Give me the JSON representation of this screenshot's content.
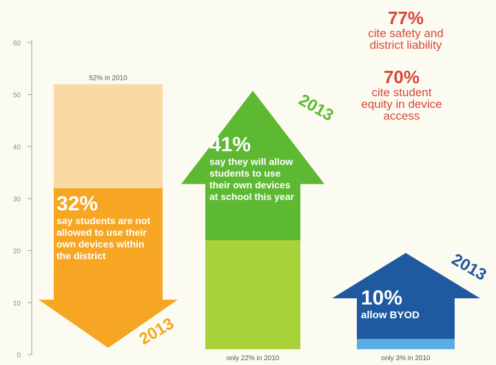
{
  "chart_data": {
    "type": "bar",
    "ylim": [
      0,
      60
    ],
    "yticks": [
      "60",
      "50",
      "40",
      "30",
      "20",
      "10",
      "0"
    ],
    "grid": false,
    "bars": [
      {
        "name": "not-allowed",
        "value_2013": 32,
        "value_2010": 52,
        "direction": "down",
        "label_2010": "52% in 2010",
        "year_label": "2013",
        "percent": "32%",
        "text": "say students are not allowed to use their own devices within the district",
        "color_2013": "#f6a623",
        "color_2010": "#fbd9a5"
      },
      {
        "name": "will-allow",
        "value_2013": 41,
        "value_2010": 22,
        "direction": "up",
        "label_2010": "only 22% in 2010",
        "year_label": "2013",
        "percent": "41%",
        "text": "say they will allow students to use their own devices at school this year",
        "color_2013": "#5db832",
        "color_2010": "#a8d23a"
      },
      {
        "name": "allow-byod",
        "value_2013": 10,
        "value_2010": 3,
        "direction": "up",
        "label_2010": "only 3% in 2010",
        "year_label": "2013",
        "percent": "10%",
        "text": "allow BYOD",
        "color_2013": "#1f5aa0",
        "color_2010": "#5aaee6"
      }
    ],
    "notes": [
      {
        "percent": "77%",
        "text": "cite safety and district liability"
      },
      {
        "percent": "70%",
        "text": "cite student equity in device access"
      }
    ]
  }
}
